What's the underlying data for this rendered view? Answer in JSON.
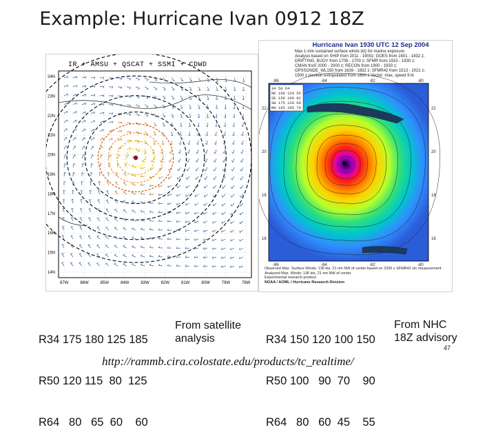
{
  "slide": {
    "title": "Example: Hurricane Ivan 0912 18Z",
    "page_number": "47",
    "url": "http://rammb.cira.colostate.edu/products/tc_realtime/"
  },
  "left_panel": {
    "legend": "IR + AMSU + QSCAT + SSMI + CDWD",
    "lat_labels": [
      "24N",
      "23N",
      "22N",
      "21N",
      "20N",
      "19N",
      "18N",
      "17N",
      "16N",
      "15N",
      "14N"
    ],
    "lon_labels": [
      "87W",
      "86W",
      "85W",
      "84W",
      "83W",
      "82W",
      "81W",
      "80W",
      "79W",
      "78W"
    ]
  },
  "right_panel": {
    "title": "Hurricane Ivan 1930 UTC 12 Sep 2004",
    "subtitle_lines": [
      "Max 1-min sustained surface winds (kt) for marine exposure",
      "Analysis based on SHIP from 2011 - 1900z; GOES from 1601 - 1832 z;",
      "DRIFTING_BUOY from 1709 - 1700 z; SFMR from 1915 - 1930 z;",
      "CMAN from 2000 - 2000 z; RECON from 1900 - 1930 z;",
      "GPSSONDE_WL150 from 1639 - 1832 z; SFMR42 from 1513 - 2021 z;",
      "1500 z position extrapolated from 1800 z Vector: max, speed 9 kt"
    ],
    "table_rows": [
      "     34  50  64",
      "NE  190 120  55",
      "SE  150 100  82",
      "SW  175  120  60",
      "NW  165 105  70"
    ],
    "footer_lines": [
      "Observed Max. Surface Winds: 136 kts, 21 nm NW of center based on 2336 z SFMR42 sfc measurement",
      "Analyzed Max. Winds: 136 kts, 21 nm NW of center",
      "Experimental research product",
      "NOAA / AOML / Hurricane Research Division"
    ],
    "lat_labels": [
      "22",
      "20",
      "18",
      "16"
    ],
    "lon_labels": [
      "-86",
      "-84",
      "-82",
      "-80"
    ]
  },
  "satellite_radii": {
    "rows": [
      "R34 175 180 125 185",
      "R50 120 115  80  125",
      "R64   80   65  60    60"
    ],
    "caption_lines": [
      "From satellite",
      "analysis"
    ]
  },
  "nhc_radii": {
    "rows": [
      "R34 150 120 100 150",
      "R50 100   90  70    90",
      "R64   80   60  45    55"
    ],
    "caption_lines": [
      "From NHC",
      "18Z advisory"
    ]
  }
}
